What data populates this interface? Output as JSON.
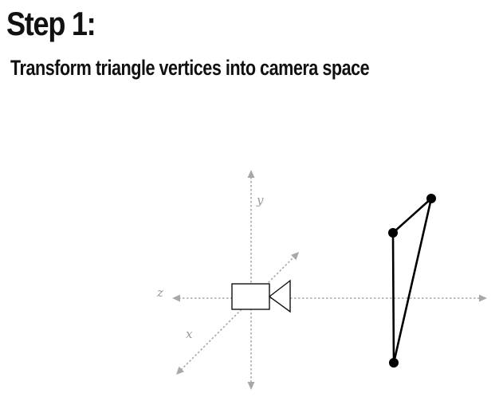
{
  "slide": {
    "title": "Step 1:",
    "subtitle": "Transform triangle vertices into camera space"
  },
  "diagram": {
    "axes": {
      "x_label": "x",
      "y_label": "y",
      "z_label": "z",
      "color": "#a8a8a8",
      "style": "dotted"
    },
    "camera": {
      "icon": "video-camera-icon",
      "facing": "+z",
      "color": "#111111"
    },
    "triangle": {
      "vertex_count": 3,
      "edge_color": "#000000",
      "vertex_color": "#000000"
    }
  }
}
